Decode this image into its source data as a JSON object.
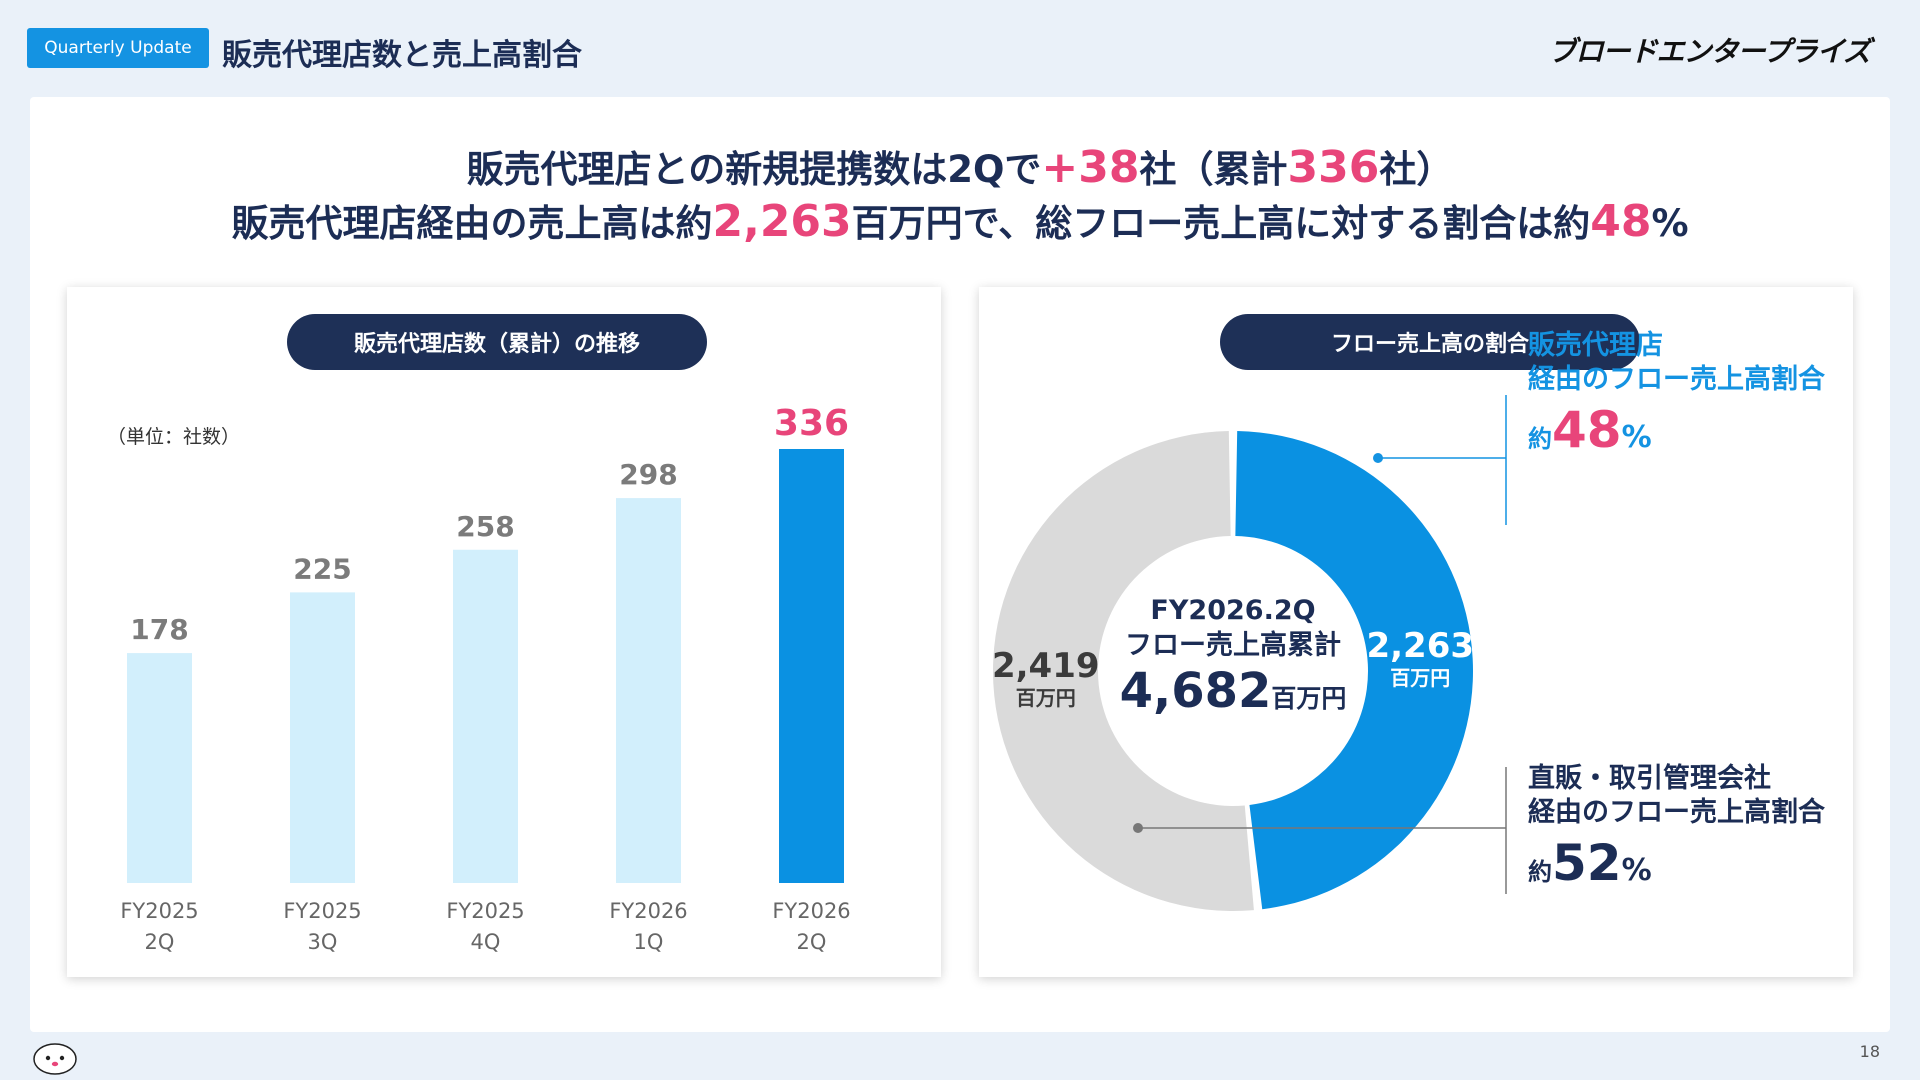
{
  "header": {
    "tag": "Quarterly Update",
    "title": "販売代理店数と売上高割合",
    "logo": "ブロードエンタープライズ"
  },
  "headline": {
    "line1_a": "販売代理店との新規提携数は2Qで",
    "line1_b": "+38",
    "line1_c": "社（累計",
    "line1_d": "336",
    "line1_e": "社）",
    "line2_a": "販売代理店経由の売上高は約",
    "line2_b": "2,263",
    "line2_c": "百万円で、総フロー売上高に対する割合は約",
    "line2_d": "48",
    "line2_e": "%"
  },
  "left_card": {
    "title": "販売代理店数（累計）の推移",
    "unit": "（単位：社数）"
  },
  "right_card": {
    "title": "フロー売上高の割合",
    "center_line1": "FY2026.2Q",
    "center_line2": "フロー売上高累計",
    "center_value": "4,682",
    "center_unit": "百万円",
    "ann_agency_line1": "販売代理店",
    "ann_agency_line2": "経由のフロー売上高割合",
    "ann_agency_pre": "約",
    "ann_agency_num": "48",
    "ann_agency_suf": "%",
    "ann_direct_line1": "直販・取引管理会社",
    "ann_direct_line2": "経由のフロー売上高割合",
    "ann_direct_pre": "約",
    "ann_direct_num": "52",
    "ann_direct_suf": "%"
  },
  "chart_data": [
    {
      "type": "bar",
      "categories": [
        [
          "FY2025",
          "2Q"
        ],
        [
          "FY2025",
          "3Q"
        ],
        [
          "FY2025",
          "4Q"
        ],
        [
          "FY2026",
          "1Q"
        ],
        [
          "FY2026",
          "2Q"
        ]
      ],
      "values": [
        178,
        225,
        258,
        298,
        336
      ],
      "title": "販売代理店数（累計）の推移",
      "ylim": [
        0,
        336
      ],
      "colors": [
        "#d2effc",
        "#d2effc",
        "#d2effc",
        "#d2effc",
        "#0a91e2"
      ],
      "label_colors": [
        "#7b7b7b",
        "#7b7b7b",
        "#7b7b7b",
        "#7b7b7b",
        "#e8457a"
      ]
    },
    {
      "type": "pie",
      "title": "フロー売上高の割合",
      "slices": [
        {
          "label": "販売代理店経由",
          "value": 2263,
          "value_label": "2,263",
          "unit": "百万円",
          "color": "#0a91e2"
        },
        {
          "label": "直販・取引管理会社経由",
          "value": 2419,
          "value_label": "2,419",
          "unit": "百万円",
          "color": "#dadada"
        }
      ]
    }
  ],
  "footer": {
    "page_number": "18"
  },
  "colors": {
    "accent": "#1493e2",
    "navy": "#1e3057",
    "pink": "#e8457a"
  }
}
